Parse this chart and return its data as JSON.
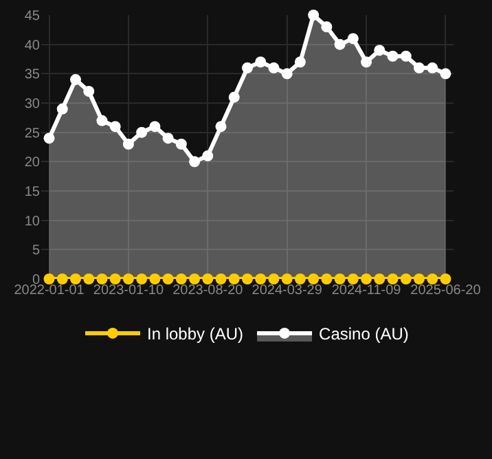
{
  "chart_data": {
    "type": "area",
    "categories": [
      "2022-01-01",
      null,
      null,
      null,
      null,
      null,
      "2023-01-10",
      null,
      null,
      null,
      null,
      null,
      "2023-08-20",
      null,
      null,
      null,
      null,
      null,
      "2024-03-29",
      null,
      null,
      null,
      null,
      null,
      "2024-11-09",
      null,
      null,
      null,
      null,
      null,
      "2025-06-20"
    ],
    "series": [
      {
        "name": "In lobby (AU)",
        "type": "line",
        "color": "#ffcc00",
        "values": [
          0,
          0,
          0,
          0,
          0,
          0,
          0,
          0,
          0,
          0,
          0,
          0,
          0,
          0,
          0,
          0,
          0,
          0,
          0,
          0,
          0,
          0,
          0,
          0,
          0,
          0,
          0,
          0,
          0,
          0,
          0
        ]
      },
      {
        "name": "Casino (AU)",
        "color": "#ffffff",
        "values": [
          24,
          29,
          34,
          32,
          27,
          26,
          23,
          25,
          26,
          24,
          23,
          20,
          21,
          26,
          31,
          36,
          37,
          36,
          35,
          37,
          45,
          43,
          40,
          41,
          37,
          39,
          38,
          38,
          36,
          36,
          35
        ]
      }
    ],
    "ylim": [
      0,
      45
    ],
    "yticks": [
      0,
      5,
      10,
      15,
      20,
      25,
      30,
      35,
      40,
      45
    ],
    "grid": true,
    "legend": "bottom",
    "marker": "circle",
    "line_style": "solid"
  }
}
